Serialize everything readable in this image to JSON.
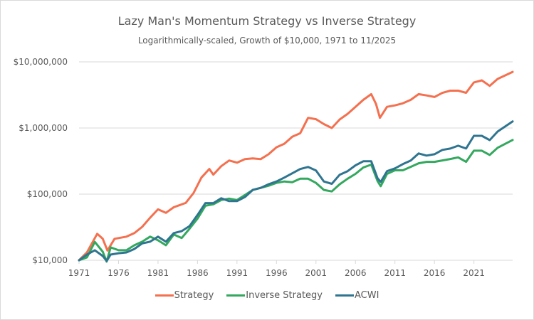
{
  "chart_data": {
    "type": "line",
    "title": "Lazy Man's Momentum Strategy vs Inverse Strategy",
    "subtitle": "Logarithmically-scaled, Growth of $10,000, 1971 to 11/2025",
    "xlabel": "",
    "ylabel": "",
    "yscale": "log",
    "ylim": [
      10000,
      10000000
    ],
    "xlim": [
      1971,
      2025.9
    ],
    "grid": true,
    "legend_position": "bottom",
    "y_ticks": [
      {
        "value": 10000,
        "label": "$10,000"
      },
      {
        "value": 100000,
        "label": "$100,000"
      },
      {
        "value": 1000000,
        "label": "$1,000,000"
      },
      {
        "value": 10000000,
        "label": "$10,000,000"
      }
    ],
    "x_ticks": [
      {
        "value": 1971,
        "label": "1971"
      },
      {
        "value": 1976,
        "label": "1976"
      },
      {
        "value": 1981,
        "label": "1981"
      },
      {
        "value": 1986,
        "label": "1986"
      },
      {
        "value": 1991,
        "label": "1991"
      },
      {
        "value": 1996,
        "label": "1996"
      },
      {
        "value": 2001,
        "label": "2001"
      },
      {
        "value": 2006,
        "label": "2006"
      },
      {
        "value": 2011,
        "label": "2011"
      },
      {
        "value": 2016,
        "label": "2016"
      },
      {
        "value": 2021,
        "label": "2021"
      }
    ],
    "series": [
      {
        "name": "Strategy",
        "color": "#f4704f",
        "x": [
          1971,
          1972,
          1973.3,
          1974,
          1974.6,
          1975.5,
          1977,
          1978,
          1979,
          1980,
          1981,
          1982,
          1983,
          1984.5,
          1985.5,
          1986.5,
          1987.5,
          1988,
          1989,
          1990,
          1991,
          1992,
          1993,
          1994,
          1995,
          1996,
          1997,
          1998,
          1999,
          2000,
          2001,
          2002,
          2003,
          2004,
          2005,
          2006,
          2007,
          2008,
          2008.6,
          2009.1,
          2010,
          2011,
          2012,
          2013,
          2014,
          2015,
          2016,
          2017,
          2018,
          2019,
          2020,
          2021,
          2022,
          2023,
          2024,
          2025.9
        ],
        "values": [
          10000,
          13130,
          25090,
          21140,
          14040,
          21140,
          22740,
          25720,
          32030,
          43950,
          58860,
          52130,
          63440,
          73490,
          103800,
          178000,
          240300,
          197100,
          264500,
          322200,
          299500,
          338300,
          346600,
          338300,
          401300,
          511400,
          578000,
          736700,
          833300,
          1425000,
          1358000,
          1145000,
          1000000,
          1345000,
          1638000,
          2091000,
          2667000,
          3246000,
          2307000,
          1425000,
          2091000,
          2197000,
          2362000,
          2667000,
          3246000,
          3106000,
          2945000,
          3400000,
          3668000,
          3668000,
          3406000,
          4884000,
          5253000,
          4327000,
          5526000,
          7049000
        ]
      },
      {
        "name": "Inverse Strategy",
        "color": "#33a85e",
        "x": [
          1971,
          1972,
          1973,
          1974,
          1974.5,
          1975,
          1976,
          1977,
          1978,
          1979,
          1980,
          1981,
          1982,
          1983,
          1984,
          1985,
          1986,
          1987,
          1988,
          1989,
          1990,
          1991,
          1992,
          1993,
          1994,
          1995,
          1996,
          1997,
          1998,
          1999,
          2000,
          2001,
          2002,
          2003,
          2004,
          2005,
          2006,
          2007,
          2008,
          2008.8,
          2009.2,
          2010,
          2011,
          2012,
          2013,
          2014,
          2015,
          2016,
          2017,
          2018,
          2019,
          2020,
          2021,
          2022,
          2023,
          2024,
          2025.9
        ],
        "values": [
          10000,
          11040,
          18950,
          13460,
          9530,
          15650,
          14180,
          14180,
          16860,
          19080,
          22740,
          20070,
          16860,
          24590,
          21700,
          30090,
          42580,
          66740,
          70130,
          81460,
          85600,
          81460,
          96880,
          115600,
          124400,
          133800,
          147800,
          155300,
          151400,
          171300,
          171300,
          147800,
          115600,
          110000,
          141000,
          171300,
          202400,
          253300,
          279600,
          157200,
          132000,
          202400,
          229100,
          229100,
          259000,
          292900,
          307800,
          307800,
          323400,
          339800,
          359300,
          307800,
          454300,
          454300,
          391300,
          502000,
          659000
        ]
      },
      {
        "name": "ACWI",
        "color": "#2f7590",
        "x": [
          1971,
          1972,
          1973,
          1974,
          1974.5,
          1975,
          1976,
          1977,
          1978,
          1979,
          1980,
          1981,
          1982,
          1983,
          1984,
          1985,
          1986,
          1987,
          1988,
          1989,
          1990,
          1991,
          1992,
          1993,
          1994,
          1995,
          1996,
          1997,
          1998,
          1999,
          2000,
          2001,
          2002,
          2003,
          2004,
          2005,
          2006,
          2007,
          2008,
          2008.8,
          2009.2,
          2010,
          2011,
          2012,
          2013,
          2014,
          2015,
          2016,
          2017,
          2018,
          2019,
          2020,
          2021,
          2022,
          2023,
          2024,
          2025.9
        ],
        "values": [
          10000,
          12190,
          14180,
          11590,
          9760,
          12190,
          12780,
          13130,
          14810,
          18000,
          19080,
          22740,
          19080,
          25720,
          27580,
          32890,
          48420,
          73140,
          73140,
          86550,
          78390,
          78390,
          90280,
          115600,
          124400,
          141000,
          155300,
          178000,
          206800,
          239800,
          257800,
          228200,
          155300,
          143200,
          196700,
          222700,
          272600,
          314200,
          314200,
          173300,
          153100,
          222700,
          245200,
          284200,
          322200,
          411700,
          382200,
          401300,
          466300,
          489000,
          540300,
          489000,
          761400,
          761400,
          656300,
          884200,
          1259000
        ]
      }
    ]
  }
}
